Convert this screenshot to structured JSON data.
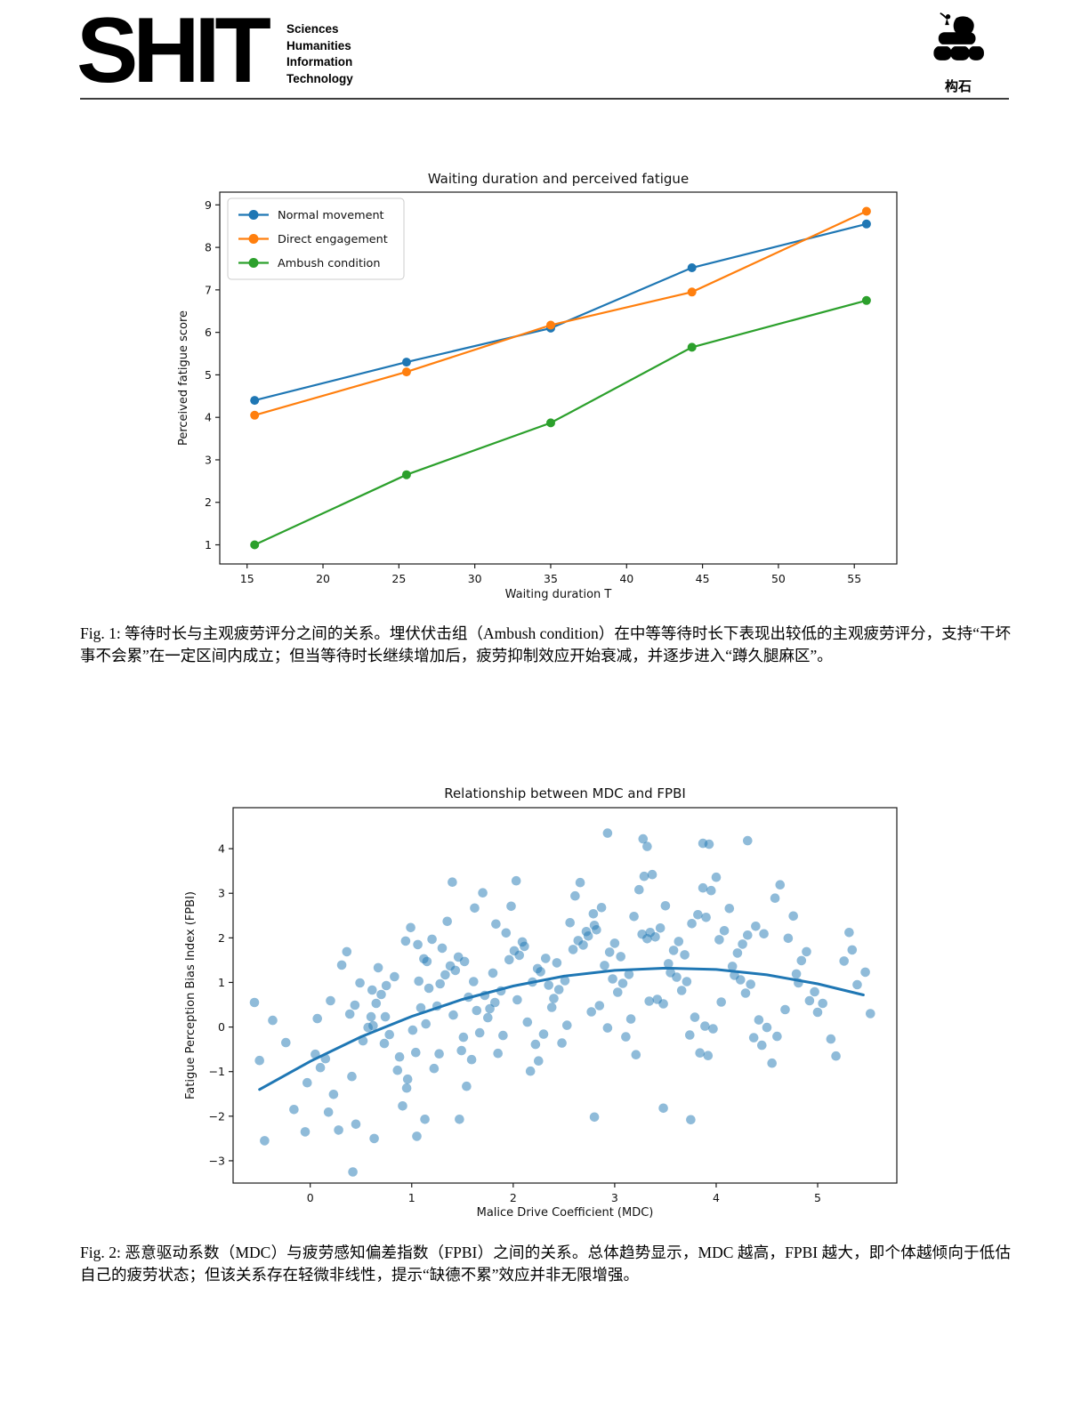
{
  "header": {
    "logo_text": "SHIT",
    "tagline_lines": [
      "Sciences",
      "Humanities",
      "Information",
      "Technology"
    ],
    "right_logo_icon": "stone-pile-icon",
    "right_logo_label": "构石"
  },
  "fig1": {
    "caption": "Fig. 1: 等待时长与主观疲劳评分之间的关系。埋伏伏击组（Ambush condition）在中等等待时长下表现出较低的主观疲劳评分，支持“干坏事不会累”在一定区间内成立；但当等待时长继续增加后，疲劳抑制效应开始衰减，并逐步进入“蹲久腿麻区”。"
  },
  "fig2": {
    "caption": "Fig. 2: 恶意驱动系数（MDC）与疲劳感知偏差指数（FPBI）之间的关系。总体趋势显示，MDC 越高，FPBI 越大，即个体越倾向于低估自己的疲劳状态；但该关系存在轻微非线性，提示“缺德不累”效应并非无限增强。"
  },
  "chart_data": [
    {
      "type": "line",
      "title": "Waiting duration and perceived fatigue",
      "xlabel": "Waiting duration T",
      "ylabel": "Perceived fatigue score",
      "x": [
        15.5,
        25.5,
        35,
        44.3,
        55.8
      ],
      "series": [
        {
          "name": "Normal movement",
          "color": "#1f77b4",
          "values": [
            4.4,
            5.3,
            6.1,
            7.52,
            8.55
          ]
        },
        {
          "name": "Direct engagement",
          "color": "#ff7f0e",
          "values": [
            4.05,
            5.07,
            6.17,
            6.95,
            8.85
          ]
        },
        {
          "name": "Ambush condition",
          "color": "#2ca02c",
          "values": [
            1.0,
            2.65,
            3.87,
            5.65,
            6.75
          ]
        }
      ],
      "xticks": [
        15,
        20,
        25,
        30,
        35,
        40,
        45,
        50,
        55
      ],
      "yticks": [
        1,
        2,
        3,
        4,
        5,
        6,
        7,
        8,
        9
      ],
      "xlim": [
        13.2,
        57.8
      ],
      "ylim": [
        0.55,
        9.3
      ],
      "legend": "upper left",
      "grid": false
    },
    {
      "type": "scatter",
      "title": "Relationship between MDC and FPBI",
      "xlabel": "Malice Drive Coefficient (MDC)",
      "ylabel": "Fatigue Perception Bias Index (FPBI)",
      "point_color": "#1f77b4",
      "point_opacity": 0.5,
      "xticks": [
        0,
        1,
        2,
        3,
        4,
        5
      ],
      "yticks": [
        -3,
        -2,
        -1,
        0,
        1,
        2,
        3,
        4
      ],
      "xlim": [
        -0.76,
        5.78
      ],
      "ylim": [
        -3.5,
        4.92
      ],
      "grid": false,
      "trend_color": "#1f77b4",
      "trend_points": [
        [
          -0.5,
          -1.4
        ],
        [
          0,
          -0.77
        ],
        [
          0.5,
          -0.22
        ],
        [
          1.0,
          0.24
        ],
        [
          1.5,
          0.62
        ],
        [
          2.0,
          0.92
        ],
        [
          2.5,
          1.14
        ],
        [
          3.0,
          1.27
        ],
        [
          3.5,
          1.32
        ],
        [
          4.0,
          1.29
        ],
        [
          4.5,
          1.17
        ],
        [
          5.0,
          0.97
        ],
        [
          5.45,
          0.72
        ]
      ],
      "points": [
        [
          -0.5,
          -0.75
        ],
        [
          -0.16,
          -1.85
        ],
        [
          -0.37,
          0.15
        ],
        [
          -0.03,
          -1.25
        ],
        [
          -0.24,
          -0.35
        ],
        [
          -0.45,
          -2.55
        ],
        [
          0.05,
          -0.61
        ],
        [
          0.39,
          0.29
        ],
        [
          0.18,
          -1.91
        ],
        [
          0.52,
          -0.31
        ],
        [
          0.31,
          1.39
        ],
        [
          0.1,
          -0.91
        ],
        [
          0.44,
          0.49
        ],
        [
          0.23,
          -1.51
        ],
        [
          0.57,
          -0.01
        ],
        [
          0.36,
          1.69
        ],
        [
          0.15,
          -0.71
        ],
        [
          0.49,
          0.99
        ],
        [
          0.28,
          -2.31
        ],
        [
          0.07,
          0.19
        ],
        [
          0.41,
          -1.11
        ],
        [
          0.2,
          0.59
        ],
        [
          0.6,
          0.23
        ],
        [
          0.94,
          1.93
        ],
        [
          0.73,
          -0.37
        ],
        [
          1.07,
          1.03
        ],
        [
          0.86,
          -0.97
        ],
        [
          0.65,
          0.53
        ],
        [
          0.99,
          2.23
        ],
        [
          0.78,
          -0.17
        ],
        [
          1.12,
          1.53
        ],
        [
          0.91,
          -1.77
        ],
        [
          0.7,
          0.73
        ],
        [
          1.04,
          -0.57
        ],
        [
          0.83,
          1.13
        ],
        [
          0.62,
          0.03
        ],
        [
          0.96,
          -1.17
        ],
        [
          0.75,
          0.93
        ],
        [
          1.09,
          0.43
        ],
        [
          0.88,
          -0.67
        ],
        [
          0.67,
          1.33
        ],
        [
          1.01,
          -0.07
        ],
        [
          0.61,
          0.83
        ],
        [
          0.95,
          -1.37
        ],
        [
          0.74,
          0.23
        ],
        [
          1.06,
          1.85
        ],
        [
          1.15,
          1.47
        ],
        [
          1.49,
          -0.53
        ],
        [
          1.28,
          0.97
        ],
        [
          1.62,
          2.67
        ],
        [
          1.41,
          0.27
        ],
        [
          1.2,
          1.97
        ],
        [
          1.54,
          -1.33
        ],
        [
          1.33,
          1.17
        ],
        [
          1.67,
          -0.13
        ],
        [
          1.46,
          1.57
        ],
        [
          1.25,
          0.47
        ],
        [
          1.59,
          -0.73
        ],
        [
          1.38,
          1.37
        ],
        [
          1.17,
          0.87
        ],
        [
          1.51,
          -0.23
        ],
        [
          1.3,
          1.77
        ],
        [
          1.64,
          0.37
        ],
        [
          1.43,
          1.27
        ],
        [
          1.22,
          -0.93
        ],
        [
          1.56,
          0.67
        ],
        [
          1.35,
          2.37
        ],
        [
          1.14,
          0.07
        ],
        [
          1.52,
          1.47
        ],
        [
          1.27,
          -0.6
        ],
        [
          1.61,
          1.02
        ],
        [
          1.4,
          3.25
        ],
        [
          1.7,
          3.01
        ],
        [
          2.04,
          0.61
        ],
        [
          1.83,
          2.31
        ],
        [
          2.17,
          -0.99
        ],
        [
          1.96,
          1.51
        ],
        [
          1.75,
          0.21
        ],
        [
          2.09,
          1.91
        ],
        [
          1.88,
          0.81
        ],
        [
          2.22,
          -0.39
        ],
        [
          2.01,
          1.71
        ],
        [
          1.8,
          1.21
        ],
        [
          2.14,
          0.11
        ],
        [
          1.93,
          2.11
        ],
        [
          1.72,
          0.71
        ],
        [
          2.06,
          1.61
        ],
        [
          1.85,
          -0.59
        ],
        [
          2.19,
          1.01
        ],
        [
          1.98,
          2.71
        ],
        [
          1.77,
          0.41
        ],
        [
          2.11,
          1.81
        ],
        [
          1.9,
          -0.19
        ],
        [
          2.24,
          1.31
        ],
        [
          2.03,
          3.28
        ],
        [
          1.82,
          0.55
        ],
        [
          2.25,
          -0.76
        ],
        [
          2.59,
          1.74
        ],
        [
          2.38,
          0.44
        ],
        [
          2.72,
          2.14
        ],
        [
          2.51,
          1.04
        ],
        [
          2.3,
          -0.16
        ],
        [
          2.64,
          1.94
        ],
        [
          2.43,
          1.44
        ],
        [
          2.77,
          0.34
        ],
        [
          2.56,
          2.34
        ],
        [
          2.35,
          0.94
        ],
        [
          2.69,
          1.84
        ],
        [
          2.48,
          -0.36
        ],
        [
          2.27,
          1.24
        ],
        [
          2.61,
          2.94
        ],
        [
          2.4,
          0.64
        ],
        [
          2.74,
          2.04
        ],
        [
          2.53,
          0.04
        ],
        [
          2.32,
          1.54
        ],
        [
          2.66,
          3.24
        ],
        [
          2.45,
          0.84
        ],
        [
          2.79,
          2.54
        ],
        [
          2.8,
          2.28
        ],
        [
          3.14,
          1.18
        ],
        [
          2.93,
          -0.02
        ],
        [
          3.27,
          2.08
        ],
        [
          3.06,
          1.58
        ],
        [
          2.85,
          0.48
        ],
        [
          3.19,
          2.48
        ],
        [
          2.98,
          1.08
        ],
        [
          3.32,
          1.98
        ],
        [
          3.11,
          -0.22
        ],
        [
          2.9,
          1.38
        ],
        [
          3.24,
          3.08
        ],
        [
          3.03,
          0.78
        ],
        [
          2.82,
          2.18
        ],
        [
          3.16,
          0.18
        ],
        [
          2.95,
          1.68
        ],
        [
          3.29,
          3.38
        ],
        [
          3.08,
          0.98
        ],
        [
          2.87,
          2.68
        ],
        [
          3.21,
          -0.62
        ],
        [
          3.0,
          1.88
        ],
        [
          3.34,
          0.58
        ],
        [
          3.35,
          2.12
        ],
        [
          3.69,
          1.62
        ],
        [
          3.48,
          0.52
        ],
        [
          3.82,
          2.52
        ],
        [
          3.61,
          1.12
        ],
        [
          3.4,
          2.02
        ],
        [
          3.74,
          -0.18
        ],
        [
          3.53,
          1.42
        ],
        [
          3.87,
          3.12
        ],
        [
          3.66,
          0.82
        ],
        [
          3.45,
          2.22
        ],
        [
          3.79,
          0.22
        ],
        [
          3.58,
          1.72
        ],
        [
          3.37,
          3.42
        ],
        [
          3.71,
          1.02
        ],
        [
          3.5,
          2.72
        ],
        [
          3.84,
          -0.58
        ],
        [
          3.63,
          1.92
        ],
        [
          3.42,
          0.62
        ],
        [
          3.76,
          2.32
        ],
        [
          3.55,
          1.22
        ],
        [
          3.89,
          0.02
        ],
        [
          3.9,
          2.46
        ],
        [
          4.24,
          1.06
        ],
        [
          4.03,
          1.96
        ],
        [
          4.37,
          -0.24
        ],
        [
          4.16,
          1.36
        ],
        [
          3.95,
          3.06
        ],
        [
          4.29,
          0.76
        ],
        [
          4.08,
          2.16
        ],
        [
          4.42,
          0.16
        ],
        [
          4.21,
          1.66
        ],
        [
          4.0,
          3.36
        ],
        [
          4.34,
          0.96
        ],
        [
          4.13,
          2.66
        ],
        [
          3.92,
          -0.64
        ],
        [
          4.26,
          1.86
        ],
        [
          4.05,
          0.56
        ],
        [
          4.39,
          2.26
        ],
        [
          4.18,
          1.16
        ],
        [
          3.97,
          -0.04
        ],
        [
          4.31,
          2.06
        ],
        [
          4.45,
          -0.41
        ],
        [
          4.79,
          1.19
        ],
        [
          4.58,
          2.89
        ],
        [
          4.92,
          0.59
        ],
        [
          4.71,
          1.99
        ],
        [
          4.5,
          -0.01
        ],
        [
          4.84,
          1.49
        ],
        [
          4.63,
          3.19
        ],
        [
          4.97,
          0.79
        ],
        [
          4.76,
          2.49
        ],
        [
          4.55,
          -0.81
        ],
        [
          4.89,
          1.69
        ],
        [
          4.68,
          0.39
        ],
        [
          4.47,
          2.09
        ],
        [
          4.81,
          0.99
        ],
        [
          4.6,
          -0.21
        ],
        [
          5.0,
          0.33
        ],
        [
          5.34,
          1.73
        ],
        [
          5.13,
          -0.27
        ],
        [
          5.47,
          1.23
        ],
        [
          5.26,
          1.48
        ],
        [
          5.05,
          0.53
        ],
        [
          5.39,
          0.95
        ],
        [
          5.18,
          -0.65
        ],
        [
          5.52,
          0.3
        ],
        [
          5.31,
          2.12
        ],
        [
          -0.55,
          0.55
        ],
        [
          -0.05,
          -2.35
        ],
        [
          0.42,
          -3.25
        ],
        [
          0.45,
          -2.18
        ],
        [
          0.63,
          -2.5
        ],
        [
          1.05,
          -2.45
        ],
        [
          1.13,
          -2.07
        ],
        [
          1.47,
          -2.07
        ],
        [
          2.8,
          -2.02
        ],
        [
          3.48,
          -1.82
        ],
        [
          3.75,
          -2.08
        ],
        [
          2.93,
          4.35
        ],
        [
          3.28,
          4.22
        ],
        [
          3.32,
          4.05
        ],
        [
          3.87,
          4.12
        ],
        [
          3.93,
          4.1
        ],
        [
          4.31,
          4.18
        ]
      ]
    }
  ]
}
